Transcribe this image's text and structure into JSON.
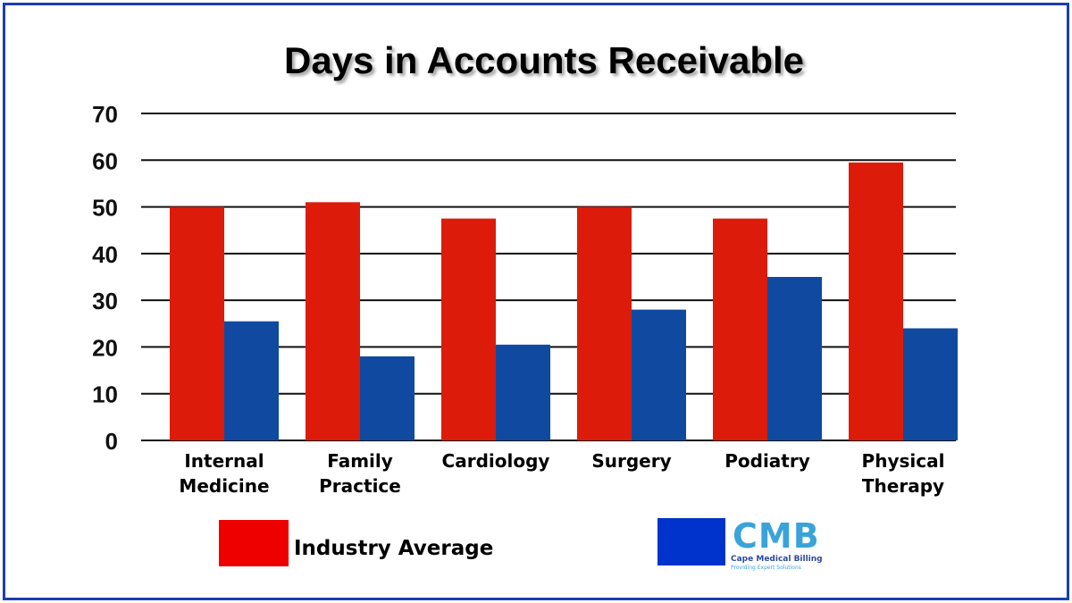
{
  "chart_data": {
    "type": "bar",
    "title": "Days in Accounts Receivable",
    "categories": [
      [
        "Internal",
        "Medicine"
      ],
      [
        "Family",
        "Practice"
      ],
      [
        "Cardiology"
      ],
      [
        "Surgery"
      ],
      [
        "Podiatry"
      ],
      [
        "Physical",
        "Therapy"
      ]
    ],
    "series": [
      {
        "name": "Industry Average",
        "color": "#dd1b0a",
        "values": [
          50,
          51,
          47.5,
          50,
          47.5,
          59.5
        ]
      },
      {
        "name": "Cape Medical Billing",
        "color": "#0f4aa0",
        "values": [
          25.5,
          18,
          20.5,
          28,
          35,
          24
        ]
      }
    ],
    "ylim": [
      0,
      70
    ],
    "yticks": [
      0,
      10,
      20,
      30,
      40,
      50,
      60,
      70
    ],
    "grid": true,
    "legend": "bottom"
  },
  "legend": {
    "industry_label": "Industry Average",
    "industry_color": "#ee0000",
    "cmb_color": "#0033cc"
  },
  "logo": {
    "text": "CMB",
    "name": "Cape Medical Billing",
    "tagline": "Providing Expert Solutions"
  },
  "colors": {
    "frame": "#1a3fb0"
  }
}
